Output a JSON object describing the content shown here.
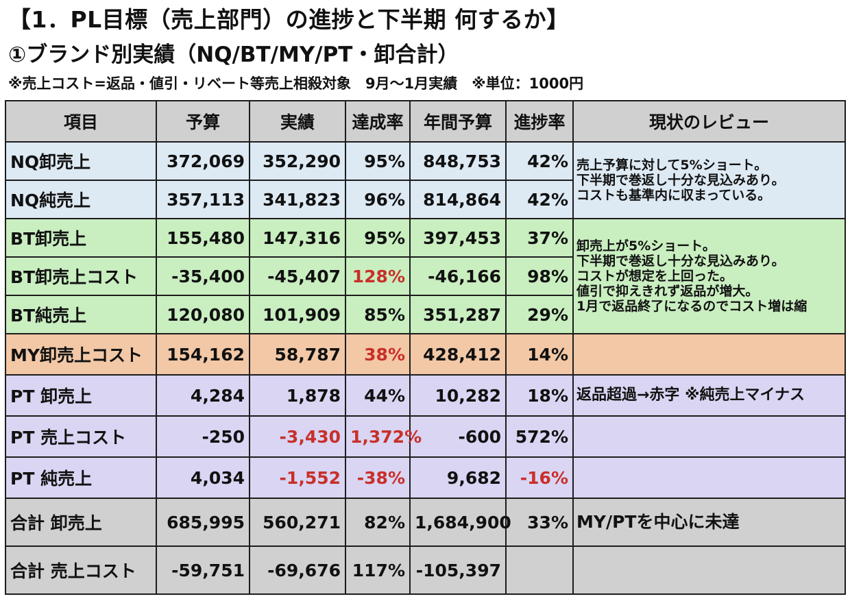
{
  "title": "【1．PL目標（売上部門）の進捗と下半期 何するか】",
  "subtitle": "①ブランド別実績（NQ/BT/MY/PT・卸合計）",
  "note": "※売上コスト=返品・値引・リベート等売上相殺対象　9月～1月実績　※単位：1000円",
  "headers": [
    "項目",
    "予算",
    "実績",
    "達成率",
    "年間予算",
    "進捗率",
    "現状のレビュー"
  ],
  "rows": [
    {
      "item": "NQ卸売上",
      "budget": "372,069",
      "actual": "352,290",
      "achievement": "95%",
      "annual_budget": "848,753",
      "progress": "42%"
    },
    {
      "item": "NQ純売上",
      "budget": "357,113",
      "actual": "341,823",
      "achievement": "96%",
      "annual_budget": "814,864",
      "progress": "42%"
    },
    {
      "item": "BT卸売上",
      "budget": "155,480",
      "actual": "147,316",
      "achievement": "95%",
      "annual_budget": "397,453",
      "progress": "37%"
    },
    {
      "item": "BT卸売上コスト",
      "budget": "-35,400",
      "actual": "-45,407",
      "achievement": "128%",
      "annual_budget": "-46,166",
      "progress": "98%"
    },
    {
      "item": "BT純売上",
      "budget": "120,080",
      "actual": "101,909",
      "achievement": "85%",
      "annual_budget": "351,287",
      "progress": "29%"
    },
    {
      "item": "MY卸売上コスト",
      "budget": "154,162",
      "actual": "58,787",
      "achievement": "38%",
      "annual_budget": "428,412",
      "progress": "14%"
    },
    {
      "item": "PT 卸売上",
      "budget": "4,284",
      "actual": "1,878",
      "achievement": "44%",
      "annual_budget": "10,282",
      "progress": "18%"
    },
    {
      "item": "PT 売上コスト",
      "budget": "-250",
      "actual": "-3,430",
      "achievement": "1,372%",
      "annual_budget": "-600",
      "progress": "572%"
    },
    {
      "item": "PT 純売上",
      "budget": "4,034",
      "actual": "-1,552",
      "achievement": "-38%",
      "annual_budget": "9,682",
      "progress": "-16%"
    },
    {
      "item": "合計 卸売上",
      "budget": "685,995",
      "actual": "560,271",
      "achievement": "82%",
      "annual_budget": "1,684,900",
      "progress": "33%"
    },
    {
      "item": "合計 売上コスト",
      "budget": "-59,751",
      "actual": "-69,676",
      "achievement": "117%",
      "annual_budget": "-105,397",
      "progress": ""
    }
  ],
  "reviews": {
    "nq": [
      "売上予算に対して5%ショート。",
      "下半期で巻返し十分な見込みあり。",
      "コストも基準内に収まっている。"
    ],
    "bt": [
      "卸売上が5%ショート。",
      "下半期で巻返し十分な見込みあり。",
      "コストが想定を上回った。",
      "値引で抑えきれず返品が増大。",
      "1月で返品終了になるのでコスト増は縮"
    ],
    "my": "",
    "pt": "返品超過→赤字 ※純売上マイナス",
    "total": "MY/PTを中心に未達"
  },
  "colors": {
    "nq_bg": "#dde9f3",
    "bt_bg": "#c9eec0",
    "my_bg": "#f2c8a6",
    "pt_bg": "#d9d5f3",
    "header_bg": "#d0d0d0",
    "alert_red": "#c8302a"
  }
}
